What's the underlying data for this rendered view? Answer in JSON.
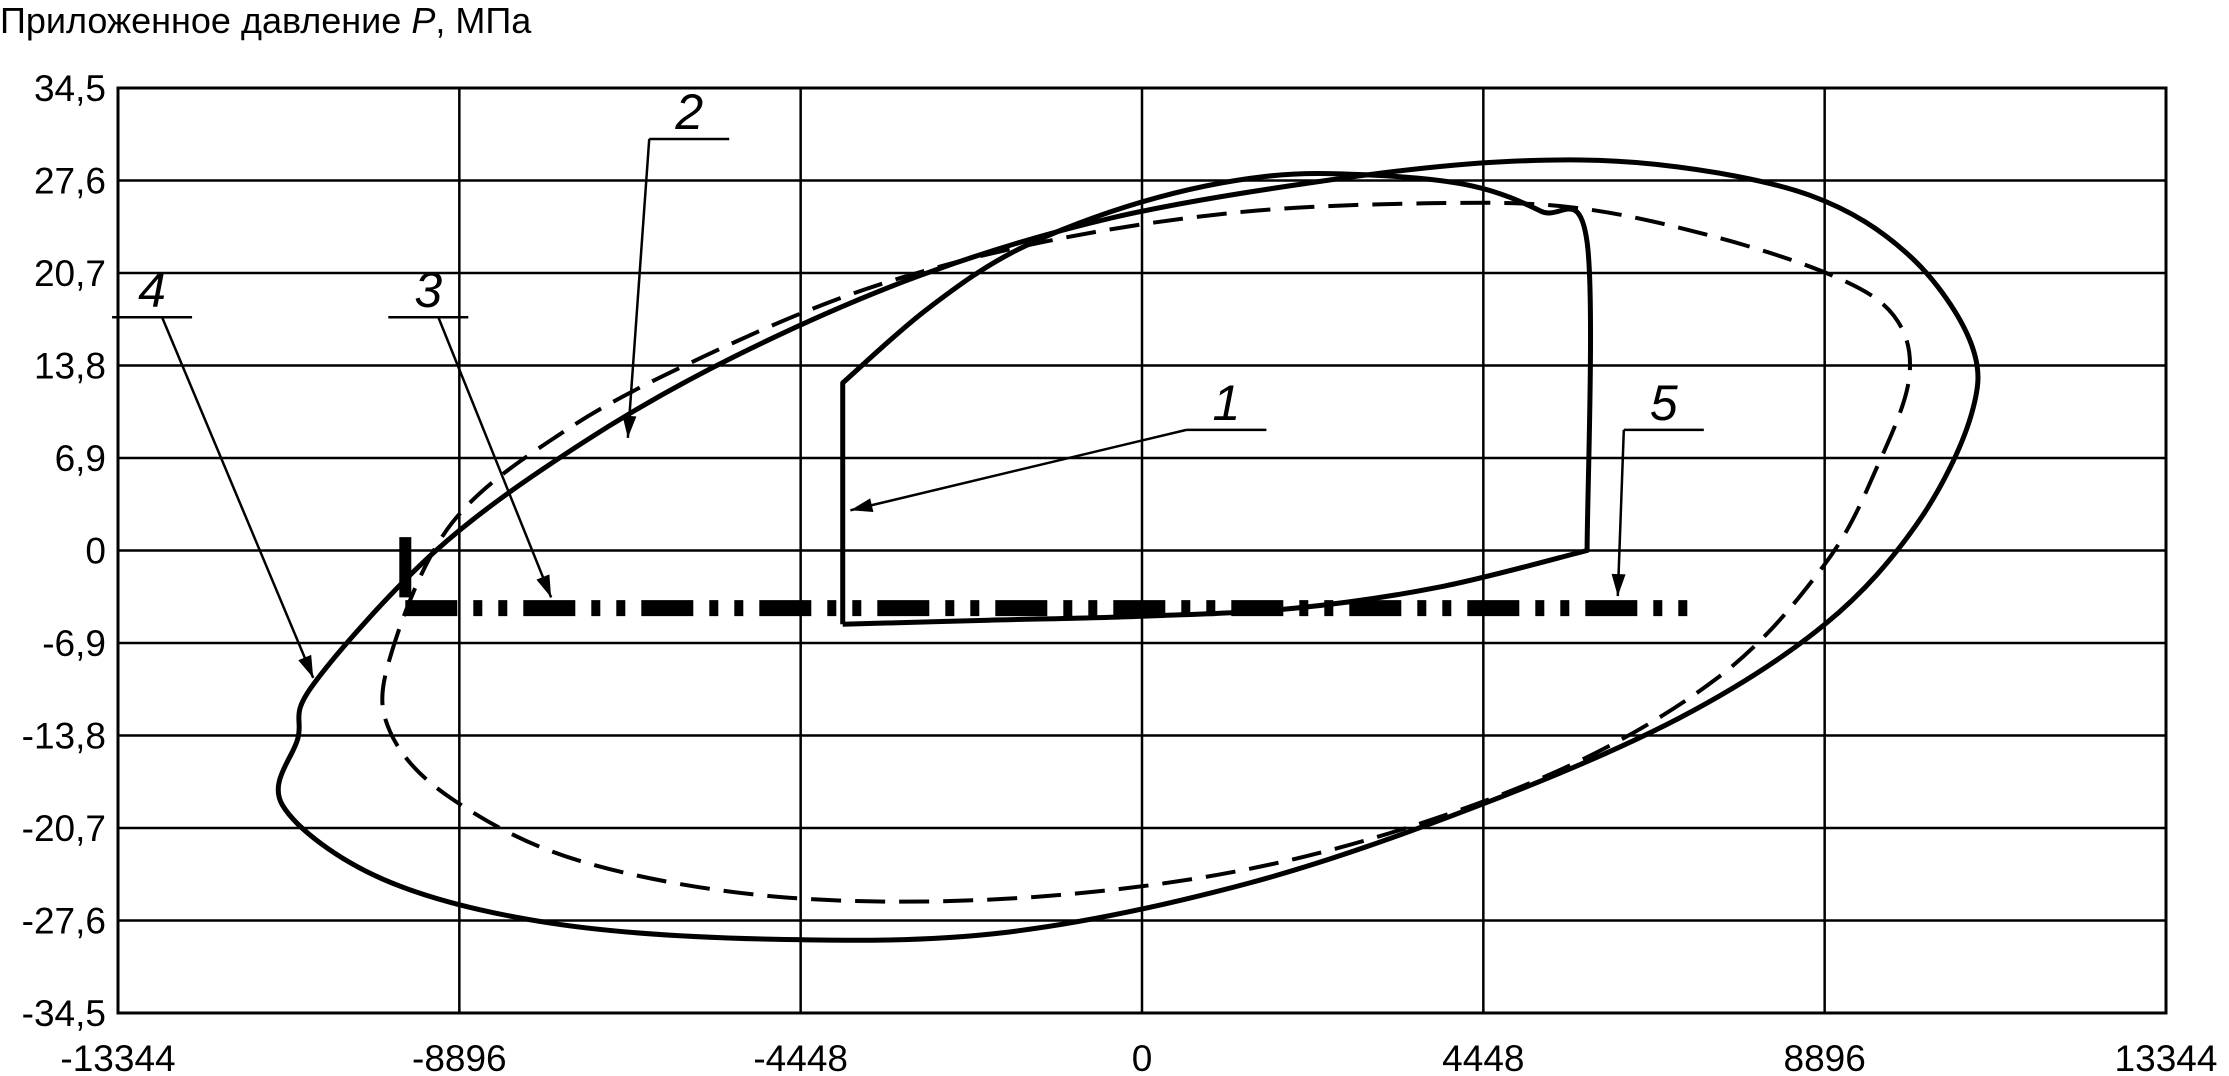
{
  "chart_data": {
    "type": "line",
    "title_prefix": "Приложенное давление ",
    "title_var": "P",
    "title_suffix": ", МПа",
    "xlabel": "",
    "ylabel": "Приложенное давление P, МПа",
    "xlim": [
      -13344,
      13344
    ],
    "ylim": [
      -34.5,
      34.5
    ],
    "x_ticks": [
      -13344,
      -8896,
      -4448,
      0,
      4448,
      8896,
      13344
    ],
    "x_tick_labels": [
      "-13344",
      "-8896",
      "-4448",
      "0",
      "4448",
      "8896",
      "13344"
    ],
    "y_ticks": [
      34.5,
      27.6,
      20.7,
      13.8,
      6.9,
      0,
      -6.9,
      -13.8,
      -20.7,
      -27.6,
      -34.5
    ],
    "y_tick_labels": [
      "34,5",
      "27,6",
      "20,7",
      "13,8",
      "6,9",
      "0",
      "-6,9",
      "-13,8",
      "-20,7",
      "-27,6",
      "-34,5"
    ],
    "grid": true,
    "series": [
      {
        "label": "1",
        "style": "solid",
        "closed": true,
        "points": [
          [
            -3900,
            -5.5
          ],
          [
            -3900,
            12.5
          ],
          [
            -2800,
            18
          ],
          [
            -1600,
            22.5
          ],
          [
            0,
            26
          ],
          [
            1600,
            27.9
          ],
          [
            3000,
            28
          ],
          [
            4300,
            27.2
          ],
          [
            5200,
            25.3
          ],
          [
            5800,
            23
          ],
          [
            5800,
            0
          ],
          [
            3900,
            -2.7
          ],
          [
            2000,
            -4.3
          ],
          [
            0,
            -4.9
          ],
          [
            -2000,
            -5.2
          ],
          [
            -3900,
            -5.5
          ]
        ]
      },
      {
        "label": "2",
        "style": "dashed",
        "closed": true,
        "points": [
          [
            -9800,
            -8
          ],
          [
            -9000,
            2
          ],
          [
            -7500,
            9
          ],
          [
            -5700,
            14.5
          ],
          [
            -3600,
            19.5
          ],
          [
            -1300,
            23
          ],
          [
            1200,
            25.2
          ],
          [
            3700,
            25.9
          ],
          [
            5600,
            25.6
          ],
          [
            7400,
            23.5
          ],
          [
            9000,
            20.5
          ],
          [
            9800,
            17.5
          ],
          [
            10000,
            13
          ],
          [
            9600,
            6.5
          ],
          [
            8900,
            -1
          ],
          [
            7500,
            -9.5
          ],
          [
            5200,
            -17
          ],
          [
            2000,
            -23
          ],
          [
            -1300,
            -25.8
          ],
          [
            -4600,
            -25.9
          ],
          [
            -7300,
            -23.2
          ],
          [
            -9000,
            -18.5
          ],
          [
            -9800,
            -13.5
          ],
          [
            -9800,
            -8
          ]
        ]
      },
      {
        "label": "4",
        "style": "solid",
        "closed": true,
        "points": [
          [
            -10800,
            -10
          ],
          [
            -9200,
            0
          ],
          [
            -7300,
            8
          ],
          [
            -5300,
            14.5
          ],
          [
            -2900,
            20.5
          ],
          [
            -400,
            24.8
          ],
          [
            2400,
            27.6
          ],
          [
            4700,
            29
          ],
          [
            6700,
            28.8
          ],
          [
            8700,
            26.5
          ],
          [
            10000,
            22
          ],
          [
            10800,
            15.5
          ],
          [
            10800,
            10
          ],
          [
            10100,
            2
          ],
          [
            8900,
            -5.5
          ],
          [
            7000,
            -12.5
          ],
          [
            4400,
            -19
          ],
          [
            1400,
            -24.8
          ],
          [
            -1800,
            -28.5
          ],
          [
            -4800,
            -29
          ],
          [
            -7700,
            -27.8
          ],
          [
            -9900,
            -24.5
          ],
          [
            -11200,
            -19
          ],
          [
            -11000,
            -14
          ],
          [
            -10800,
            -10
          ]
        ]
      },
      {
        "label": "3",
        "style": "dashdotdot-thick",
        "closed": false,
        "points": [
          [
            -9600,
            -4.3
          ],
          [
            7300,
            -4.3
          ]
        ]
      },
      {
        "label": "5",
        "style": "solid-thick",
        "closed": false,
        "points": [
          [
            -9600,
            1
          ],
          [
            -9600,
            -3.5
          ]
        ]
      }
    ],
    "annotations": [
      {
        "text": "1",
        "label_x": 1100,
        "label_y": 9,
        "arrow_to": [
          -3800,
          3
        ]
      },
      {
        "text": "2",
        "label_x": -5900,
        "label_y": 30.7,
        "arrow_to": [
          -6700,
          8.4
        ]
      },
      {
        "text": "3",
        "label_x": -9300,
        "label_y": 17.4,
        "arrow_to": [
          -7700,
          -3.5
        ]
      },
      {
        "text": "4",
        "label_x": -12900,
        "label_y": 17.4,
        "arrow_to": [
          -10800,
          -9.5
        ]
      },
      {
        "text": "5",
        "label_x": 6800,
        "label_y": 9,
        "arrow_to": [
          6200,
          -3.4
        ]
      }
    ]
  }
}
